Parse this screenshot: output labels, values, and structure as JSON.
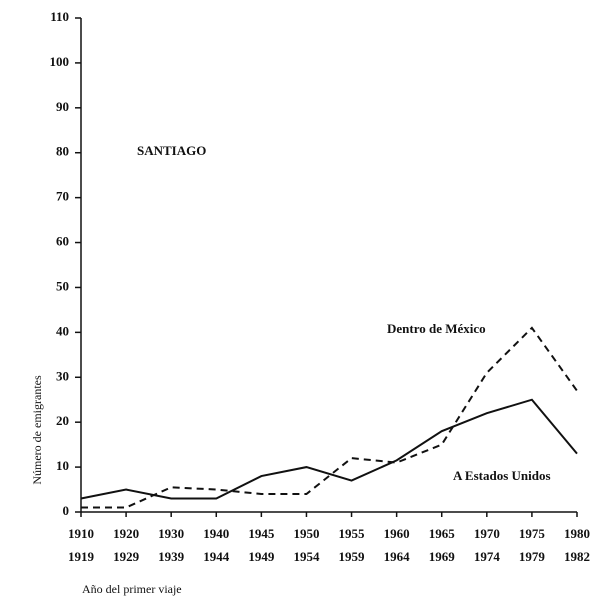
{
  "chart_data": {
    "type": "line",
    "title": "SANTIAGO",
    "x_label": "Año del primer viaje",
    "y_label": "Número de emigrantes",
    "categories": [
      [
        "1910",
        "1919"
      ],
      [
        "1920",
        "1929"
      ],
      [
        "1930",
        "1939"
      ],
      [
        "1940",
        "1944"
      ],
      [
        "1945",
        "1949"
      ],
      [
        "1950",
        "1954"
      ],
      [
        "1955",
        "1959"
      ],
      [
        "1960",
        "1964"
      ],
      [
        "1965",
        "1969"
      ],
      [
        "1970",
        "1974"
      ],
      [
        "1975",
        "1979"
      ],
      [
        "1980",
        "1982"
      ]
    ],
    "series": [
      {
        "name": "A Estados Unidos",
        "color": "#111111",
        "dashed": false,
        "values": [
          3,
          5,
          3,
          3,
          8,
          10,
          7,
          11.5,
          18,
          22,
          25,
          13
        ]
      },
      {
        "name": "Dentro de México",
        "color": "#111111",
        "dashed": true,
        "values": [
          1,
          1,
          5.5,
          5,
          4,
          4,
          12,
          11,
          15,
          31,
          41,
          27
        ]
      }
    ],
    "ylim": [
      0,
      110
    ],
    "yticks": [
      0,
      10,
      20,
      30,
      40,
      50,
      60,
      70,
      80,
      90,
      100,
      110
    ]
  }
}
